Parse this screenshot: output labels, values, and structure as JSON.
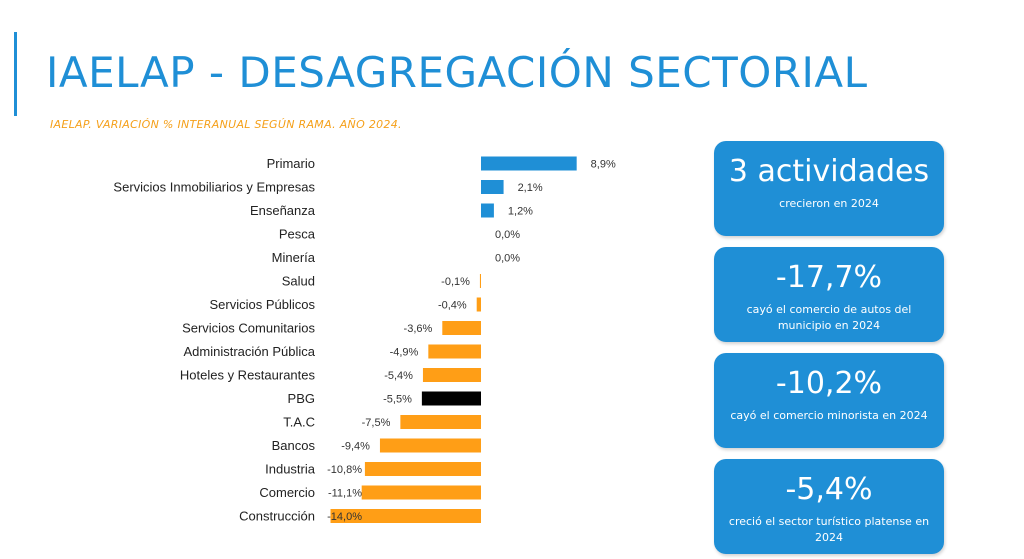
{
  "header": {
    "title": "IAELAP - DESAGREGACIÓN SECTORIAL",
    "subtitle": "IAELAP. VARIACIÓN % INTERANUAL SEGÚN RAMA. AÑO 2024."
  },
  "colors": {
    "accent": "#1f8fd6",
    "positive": "#1f8fd6",
    "negative": "#ff9e16",
    "highlight": "#000000"
  },
  "chart_data": {
    "type": "bar",
    "orientation": "horizontal",
    "title": "IAELAP. VARIACIÓN % INTERANUAL SEGÚN RAMA. AÑO 2024.",
    "xlabel": "",
    "ylabel": "",
    "xlim": [
      -14.0,
      8.9
    ],
    "grid": false,
    "categories": [
      "Primario",
      "Servicios Inmobiliarios y Empresas",
      "Enseñanza",
      "Pesca",
      "Minería",
      "Salud",
      "Servicios Públicos",
      "Servicios Comunitarios",
      "Administración Pública",
      "Hoteles y Restaurantes",
      "PBG",
      "T.A.C",
      "Bancos",
      "Industria",
      "Comercio",
      "Construcción"
    ],
    "values": [
      8.9,
      2.1,
      1.2,
      0.0,
      0.0,
      -0.1,
      -0.4,
      -3.6,
      -4.9,
      -5.4,
      -5.5,
      -7.5,
      -9.4,
      -10.8,
      -11.1,
      -14.0
    ],
    "labels": [
      "8,9%",
      "2,1%",
      "1,2%",
      "0,0%",
      "0,0%",
      "-0,1%",
      "-0,4%",
      "-3,6%",
      "-4,9%",
      "-5,4%",
      "-5,5%",
      "-7,5%",
      "-9,4%",
      "-10,8%",
      "-11,1%",
      "-14,0%"
    ],
    "highlight_category": "PBG"
  },
  "cards": [
    {
      "headline": "3 actividades",
      "description": "crecieron en 2024"
    },
    {
      "headline": "-17,7%",
      "description": "cayó el comercio de autos del municipio en 2024"
    },
    {
      "headline": "-10,2%",
      "description": "cayó el comercio minorista en 2024"
    },
    {
      "headline": "-5,4%",
      "description": "creció el sector turístico platense en 2024"
    }
  ]
}
